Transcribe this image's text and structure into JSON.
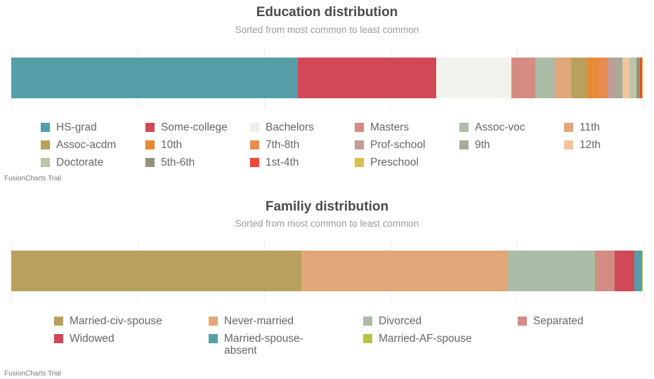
{
  "chart_data": [
    {
      "type": "bar",
      "stacked": "100%",
      "orientation": "horizontal",
      "title": "Education distribution",
      "subtitle": "Sorted from most common to least common",
      "unit": "percent",
      "grid": true,
      "legend": "bottom",
      "categories": [
        "HS-grad",
        "Some-college",
        "Bachelors",
        "Masters",
        "Assoc-voc",
        "11th",
        "Assoc-acdm",
        "10th",
        "7th-8th",
        "Prof-school",
        "9th",
        "12th",
        "Doctorate",
        "5th-6th",
        "1st-4th",
        "Preschool"
      ],
      "values": [
        45.3,
        21.9,
        11.9,
        3.8,
        3.1,
        2.6,
        2.4,
        2.0,
        1.4,
        1.2,
        1.1,
        1.1,
        1.1,
        0.6,
        0.3,
        0.1
      ],
      "colors": [
        "#559ea8",
        "#d14856",
        "#f2f3ee",
        "#d48b82",
        "#abbda7",
        "#e0a778",
        "#b8a15f",
        "#e68a37",
        "#ec8b50",
        "#c29c97",
        "#a5ac97",
        "#f2c59f",
        "#bac6a6",
        "#93937f",
        "#eb4a35",
        "#d6bf50"
      ],
      "footer": "FusionCharts Trial"
    },
    {
      "type": "bar",
      "stacked": "100%",
      "orientation": "horizontal",
      "title": "Familiy distribution",
      "subtitle": "Sorted from most common to least common",
      "unit": "percent",
      "grid": true,
      "legend": "bottom",
      "categories": [
        "Married-civ-spouse",
        "Never-married",
        "Divorced",
        "Separated",
        "Widowed",
        "Married-spouse-absent",
        "Married-AF-spouse"
      ],
      "values": [
        45.9,
        32.7,
        13.7,
        3.2,
        3.1,
        1.2,
        0.1
      ],
      "colors": [
        "#b8a15f",
        "#e0a778",
        "#abbda7",
        "#d48b82",
        "#d14856",
        "#559ea8",
        "#b5c24a"
      ],
      "footer": "FusionCharts Trial"
    }
  ]
}
